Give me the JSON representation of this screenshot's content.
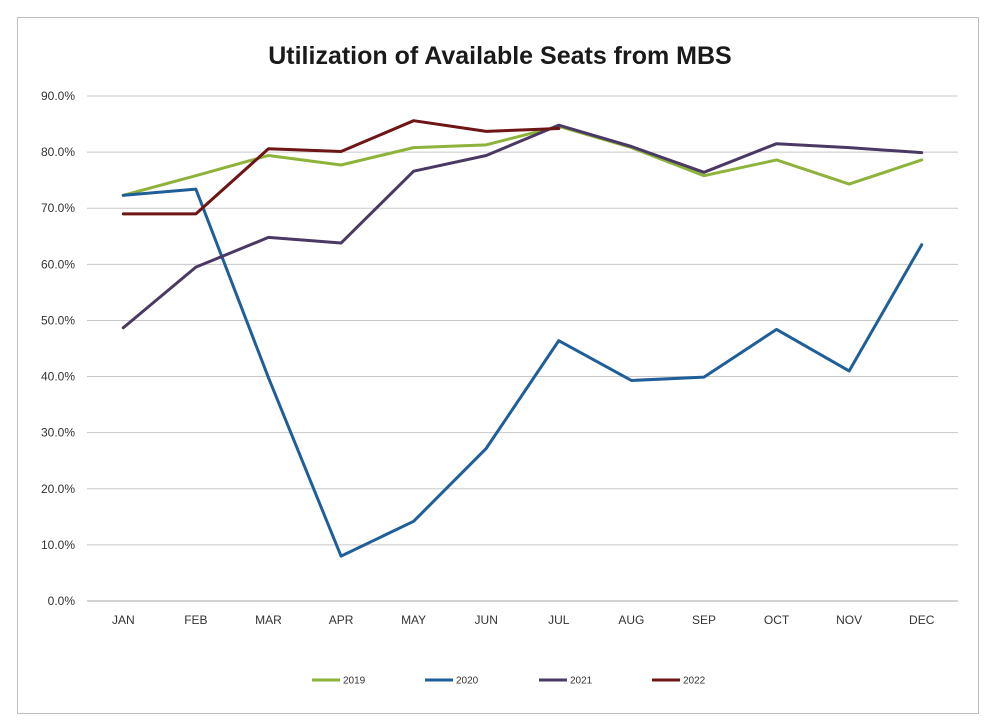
{
  "chart_data": {
    "type": "line",
    "title": "Utilization of Available Seats from MBS",
    "xlabel": "",
    "ylabel": "",
    "categories": [
      "JAN",
      "FEB",
      "MAR",
      "APR",
      "MAY",
      "JUN",
      "JUL",
      "AUG",
      "SEP",
      "OCT",
      "NOV",
      "DEC"
    ],
    "ylim": [
      0,
      90
    ],
    "yticks": [
      0,
      10,
      20,
      30,
      40,
      50,
      60,
      70,
      80,
      90
    ],
    "ytick_labels": [
      "0.0%",
      "10.0%",
      "20.0%",
      "30.0%",
      "40.0%",
      "50.0%",
      "60.0%",
      "70.0%",
      "80.0%",
      "90.0%"
    ],
    "grid": true,
    "legend_position": "bottom",
    "series": [
      {
        "name": "2019",
        "color": "#8db33a",
        "values": [
          72.3,
          75.8,
          79.4,
          77.7,
          80.8,
          81.3,
          84.6,
          80.8,
          75.8,
          78.6,
          74.3,
          78.6
        ]
      },
      {
        "name": "2020",
        "color": "#1f5f99",
        "values": [
          72.3,
          73.4,
          39.8,
          8.0,
          14.2,
          27.2,
          46.4,
          39.3,
          39.9,
          48.4,
          41.0,
          63.5
        ]
      },
      {
        "name": "2021",
        "color": "#4a3a63",
        "values": [
          48.7,
          59.5,
          64.8,
          63.8,
          76.6,
          79.4,
          84.8,
          81.0,
          76.4,
          81.5,
          80.8,
          79.9
        ]
      },
      {
        "name": "2022",
        "color": "#6e1515",
        "values": [
          69.0,
          69.0,
          80.6,
          80.1,
          85.6,
          83.7,
          84.2,
          null,
          null,
          null,
          null,
          null
        ]
      }
    ]
  }
}
